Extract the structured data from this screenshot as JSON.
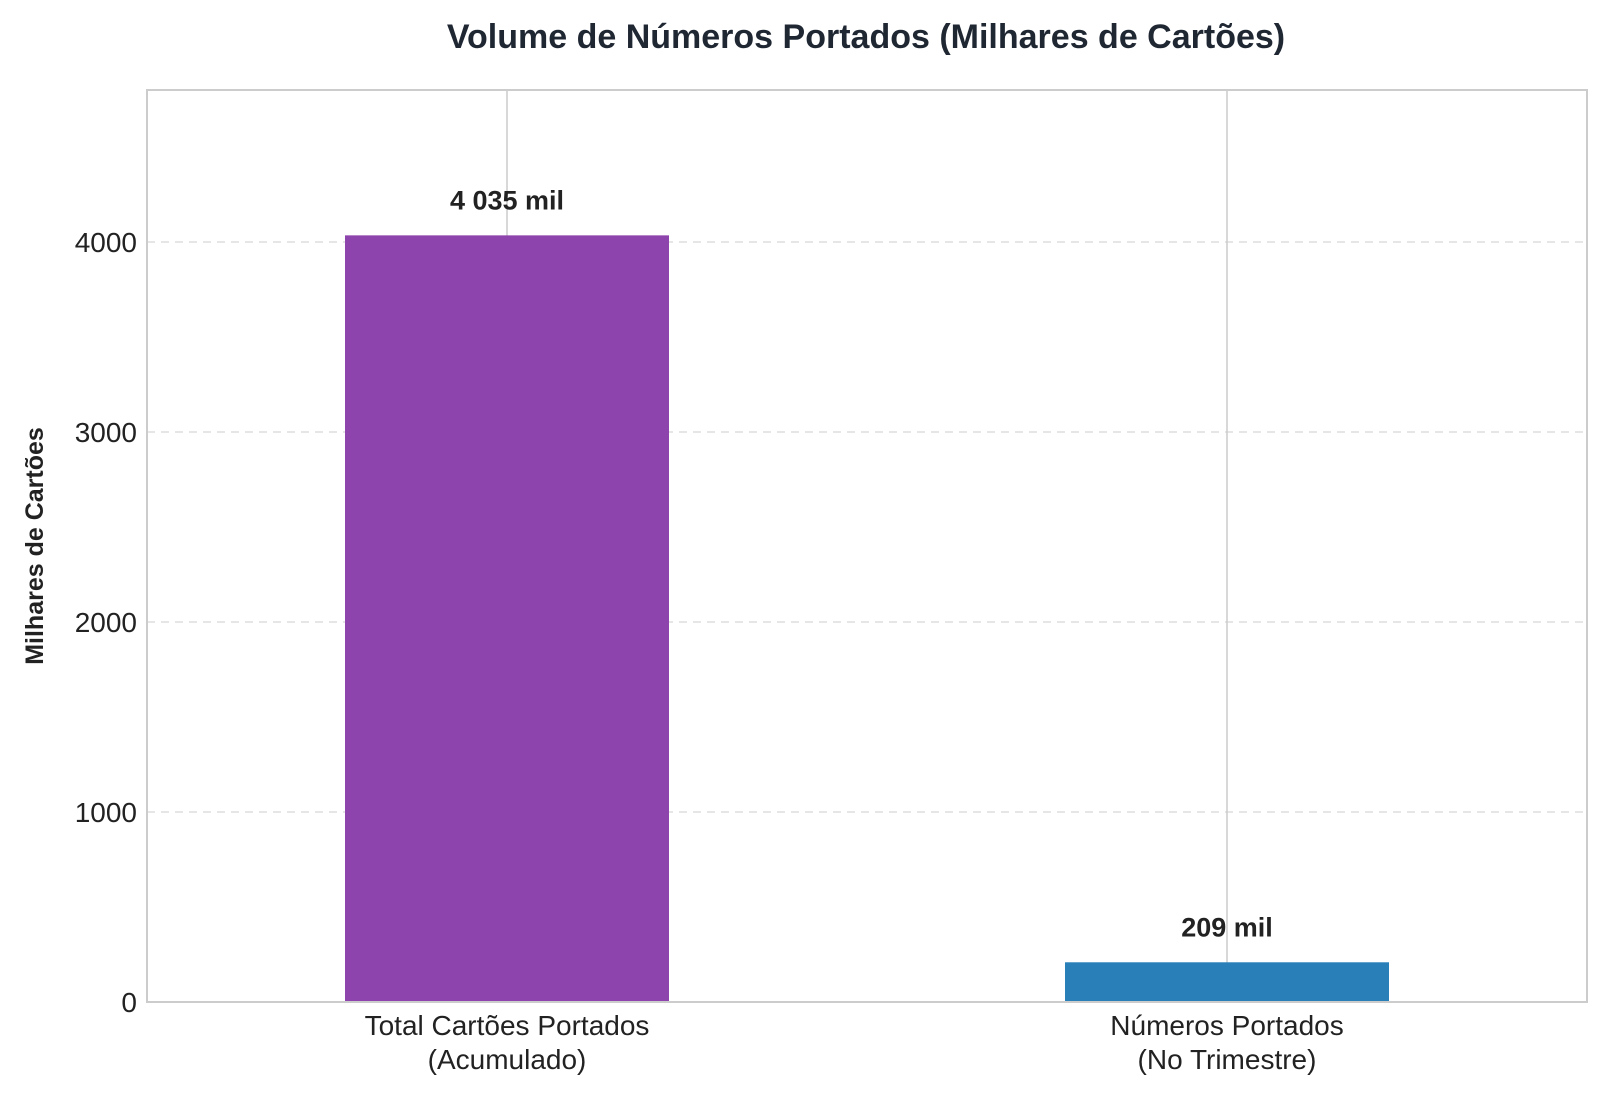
{
  "chart_data": {
    "type": "bar",
    "title": "Volume de Números Portados (Milhares de Cartões)",
    "xlabel": "",
    "ylabel": "Milhares de Cartões",
    "categories": [
      [
        "Total Cartões Portados",
        "(Acumulado)"
      ],
      [
        "Números Portados",
        "(No Trimestre)"
      ]
    ],
    "values": [
      4035,
      209
    ],
    "data_labels": [
      "4 035 mil",
      "209 mil"
    ],
    "colors": [
      "#8e44ad",
      "#2980b9"
    ],
    "ylim": [
      0,
      4800
    ],
    "yticks": [
      0,
      1000,
      2000,
      3000,
      4000
    ],
    "grid": true,
    "legend": "none"
  }
}
